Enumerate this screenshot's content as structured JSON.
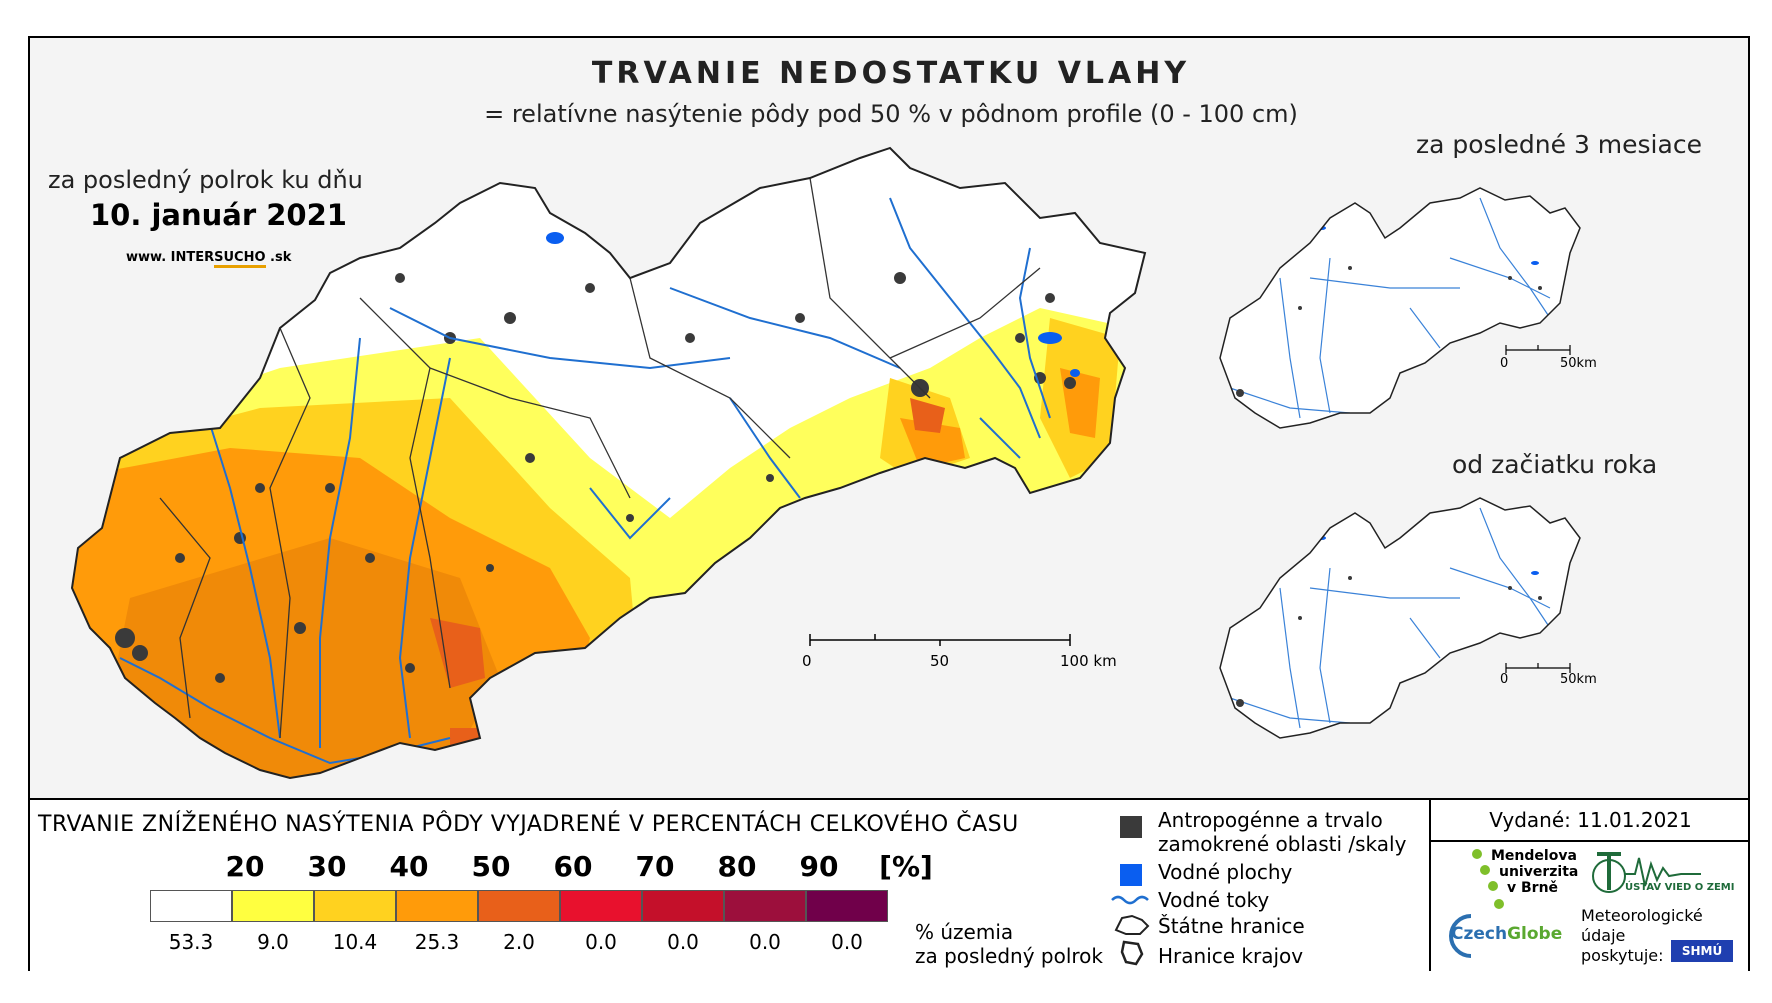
{
  "title": "TRVANIE NEDOSTATKU VLAHY",
  "subtitle": "= relatívne nasýtenie pôdy pod 50 % v pôdnom profile (0 - 100 cm)",
  "period_label": "za posledný polrok ku dňu",
  "date": "10. január 2021",
  "website": {
    "prefix": "www. INTER",
    "middle": "SUCHO",
    "suffix": " .sk"
  },
  "main_scale": {
    "ticks": [
      "0",
      "50",
      "100 km"
    ]
  },
  "inset_top": {
    "label": "za posledné 3 mesiace",
    "scale": [
      "0",
      "50km"
    ]
  },
  "inset_bottom": {
    "label": "od začiatku roka",
    "scale": [
      "0",
      "50km"
    ]
  },
  "legend": {
    "title": "TRVANIE ZNÍŽENÉHO NASÝTENIA PÔDY VYJADRENÉ V PERCENTÁCH CELKOVÉHO ČASU",
    "thresholds": [
      "20",
      "30",
      "40",
      "50",
      "60",
      "70",
      "80",
      "90",
      "[%]"
    ],
    "classes": [
      {
        "color": "#ffffff",
        "pct": "53.3"
      },
      {
        "color": "#ffff40",
        "pct": "9.0"
      },
      {
        "color": "#ffd21f",
        "pct": "10.4"
      },
      {
        "color": "#ff9b0a",
        "pct": "25.3"
      },
      {
        "color": "#e8601a",
        "pct": "2.0"
      },
      {
        "color": "#e8112d",
        "pct": "0.0"
      },
      {
        "color": "#c4102a",
        "pct": "0.0"
      },
      {
        "color": "#9c0f3c",
        "pct": "0.0"
      },
      {
        "color": "#70004a",
        "pct": "0.0"
      }
    ],
    "pct_note_1": "% územia",
    "pct_note_2": "za posledný polrok",
    "symbols": {
      "urban_1": "Antropogénne a trvalo",
      "urban_2": "zamokrené oblasti /skaly",
      "water": "Vodné plochy",
      "rivers": "Vodné toky",
      "border": "Štátne hranice",
      "regions": "Hranice krajov"
    }
  },
  "issued": "Vydané: 11.01.2021",
  "logos": {
    "mendel_1": "Mendelova",
    "mendel_2": "univerzita",
    "mendel_3": "v Brně",
    "czechglobe_1": "Czech",
    "czechglobe_2": "Globe",
    "uvz": "ÚSTAV VIED O ZEMI",
    "shmu": "SHMÚ",
    "meteo_1": "Meteorologické",
    "meteo_2": "údaje",
    "meteo_3": "poskytuje:"
  },
  "colors": {
    "frame": "#000000",
    "river": "#1f6fd0",
    "urban": "#3a3a3a",
    "water": "#0a5ef0"
  }
}
